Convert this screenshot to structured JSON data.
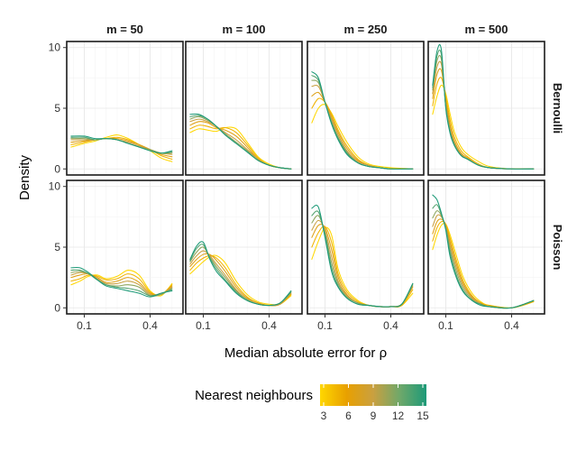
{
  "chart_data": {
    "type": "line",
    "xlabel": "Median absolute error for ρ",
    "ylabel": "Density",
    "xlim": [
      0.02,
      0.55
    ],
    "x_ticks": [
      {
        "value": 0.1,
        "label": "0.1"
      },
      {
        "value": 0.4,
        "label": "0.4"
      }
    ],
    "columns": [
      "m = 50",
      "m = 100",
      "m = 250",
      "m = 500"
    ],
    "rows": [
      {
        "label": "Bernoulli",
        "ylim": [
          -0.5,
          10.5
        ],
        "y_ticks": [
          {
            "value": 0,
            "label": "0"
          },
          {
            "value": 5,
            "label": "5"
          },
          {
            "value": 10,
            "label": "10"
          }
        ]
      },
      {
        "label": "Poisson",
        "ylim": [
          -0.5,
          10.5
        ],
        "y_ticks": [
          {
            "value": 0,
            "label": "0"
          },
          {
            "value": 5,
            "label": "5"
          },
          {
            "value": 10,
            "label": "10"
          }
        ]
      }
    ],
    "legend": {
      "title": "Nearest neighbours",
      "min": 3,
      "max": 15,
      "ticks": [
        "3",
        "6",
        "9",
        "12",
        "15"
      ],
      "colors": [
        "#FFD700",
        "#E8A000",
        "#C9A040",
        "#6FA86A",
        "#1D9A78"
      ]
    },
    "series_k": [
      3,
      5,
      7,
      9,
      11,
      13,
      15
    ],
    "panels": [
      {
        "row": "Bernoulli",
        "col": "m = 50",
        "x": [
          0.04,
          0.1,
          0.15,
          0.2,
          0.25,
          0.3,
          0.35,
          0.4,
          0.45,
          0.5
        ],
        "curves": [
          [
            1.8,
            2.1,
            2.3,
            2.6,
            2.8,
            2.5,
            2.0,
            1.5,
            0.9,
            0.6
          ],
          [
            2.0,
            2.2,
            2.4,
            2.5,
            2.6,
            2.4,
            2.0,
            1.6,
            1.1,
            0.8
          ],
          [
            2.2,
            2.3,
            2.4,
            2.5,
            2.5,
            2.3,
            2.0,
            1.6,
            1.2,
            1.0
          ],
          [
            2.4,
            2.4,
            2.4,
            2.5,
            2.4,
            2.2,
            1.9,
            1.6,
            1.3,
            1.2
          ],
          [
            2.5,
            2.5,
            2.4,
            2.5,
            2.4,
            2.1,
            1.8,
            1.6,
            1.3,
            1.3
          ],
          [
            2.6,
            2.6,
            2.4,
            2.5,
            2.4,
            2.1,
            1.8,
            1.5,
            1.3,
            1.4
          ],
          [
            2.7,
            2.7,
            2.5,
            2.5,
            2.4,
            2.1,
            1.8,
            1.5,
            1.3,
            1.5
          ]
        ]
      },
      {
        "row": "Bernoulli",
        "col": "m = 100",
        "x": [
          0.04,
          0.08,
          0.12,
          0.16,
          0.2,
          0.25,
          0.3,
          0.35,
          0.4,
          0.45,
          0.5
        ],
        "curves": [
          [
            3.0,
            3.3,
            3.2,
            3.1,
            3.4,
            3.3,
            2.2,
            1.0,
            0.4,
            0.1,
            0.0
          ],
          [
            3.3,
            3.6,
            3.5,
            3.3,
            3.4,
            3.0,
            2.0,
            0.9,
            0.3,
            0.1,
            0.0
          ],
          [
            3.6,
            3.9,
            3.8,
            3.4,
            3.2,
            2.7,
            1.8,
            0.8,
            0.3,
            0.1,
            0.0
          ],
          [
            3.9,
            4.1,
            3.9,
            3.5,
            3.0,
            2.4,
            1.6,
            0.8,
            0.3,
            0.1,
            0.0
          ],
          [
            4.1,
            4.3,
            4.0,
            3.5,
            2.9,
            2.2,
            1.5,
            0.7,
            0.3,
            0.1,
            0.0
          ],
          [
            4.3,
            4.4,
            4.1,
            3.5,
            2.8,
            2.1,
            1.4,
            0.7,
            0.3,
            0.1,
            0.0
          ],
          [
            4.5,
            4.5,
            4.1,
            3.5,
            2.8,
            2.1,
            1.4,
            0.7,
            0.3,
            0.1,
            0.0
          ]
        ]
      },
      {
        "row": "Bernoulli",
        "col": "m = 250",
        "x": [
          0.04,
          0.07,
          0.1,
          0.13,
          0.16,
          0.2,
          0.25,
          0.3,
          0.35,
          0.4,
          0.5
        ],
        "curves": [
          [
            3.8,
            5.0,
            5.3,
            4.6,
            3.5,
            2.2,
            1.0,
            0.4,
            0.2,
            0.1,
            0.0
          ],
          [
            5.0,
            5.8,
            5.5,
            4.5,
            3.2,
            1.9,
            0.8,
            0.3,
            0.1,
            0.0,
            0.0
          ],
          [
            6.0,
            6.3,
            5.5,
            4.3,
            3.0,
            1.7,
            0.7,
            0.3,
            0.1,
            0.0,
            0.0
          ],
          [
            6.8,
            6.8,
            5.5,
            4.1,
            2.8,
            1.5,
            0.6,
            0.3,
            0.1,
            0.0,
            0.0
          ],
          [
            7.3,
            7.1,
            5.5,
            3.9,
            2.6,
            1.4,
            0.5,
            0.2,
            0.1,
            0.0,
            0.0
          ],
          [
            7.7,
            7.3,
            5.5,
            3.8,
            2.5,
            1.3,
            0.5,
            0.2,
            0.1,
            0.0,
            0.0
          ],
          [
            8.0,
            7.5,
            5.5,
            3.7,
            2.4,
            1.2,
            0.5,
            0.2,
            0.1,
            0.0,
            0.0
          ]
        ]
      },
      {
        "row": "Bernoulli",
        "col": "m = 500",
        "x": [
          0.04,
          0.06,
          0.08,
          0.1,
          0.12,
          0.14,
          0.17,
          0.2,
          0.25,
          0.3,
          0.4,
          0.5
        ],
        "curves": [
          [
            4.5,
            6.0,
            6.9,
            6.2,
            4.5,
            3.0,
            1.8,
            1.2,
            0.6,
            0.2,
            0.0,
            0.0
          ],
          [
            5.2,
            7.0,
            7.5,
            6.0,
            4.0,
            2.6,
            1.5,
            1.0,
            0.4,
            0.1,
            0.0,
            0.0
          ],
          [
            5.8,
            7.8,
            8.1,
            5.7,
            3.6,
            2.3,
            1.3,
            0.9,
            0.3,
            0.1,
            0.0,
            0.0
          ],
          [
            6.2,
            8.4,
            8.6,
            5.4,
            3.3,
            2.1,
            1.2,
            0.8,
            0.3,
            0.1,
            0.0,
            0.0
          ],
          [
            6.5,
            8.9,
            9.0,
            5.2,
            3.1,
            2.0,
            1.1,
            0.8,
            0.3,
            0.1,
            0.0,
            0.0
          ],
          [
            6.7,
            9.3,
            9.4,
            5.1,
            3.0,
            1.9,
            1.1,
            0.8,
            0.3,
            0.1,
            0.0,
            0.0
          ],
          [
            6.9,
            9.7,
            9.8,
            5.0,
            2.9,
            1.9,
            1.1,
            0.8,
            0.3,
            0.1,
            0.0,
            0.0
          ]
        ]
      },
      {
        "row": "Poisson",
        "col": "m = 50",
        "x": [
          0.04,
          0.08,
          0.12,
          0.16,
          0.2,
          0.25,
          0.3,
          0.35,
          0.4,
          0.45,
          0.5
        ],
        "curves": [
          [
            1.9,
            2.2,
            2.6,
            2.7,
            2.4,
            2.6,
            3.1,
            2.7,
            1.4,
            1.0,
            2.0
          ],
          [
            2.2,
            2.4,
            2.7,
            2.6,
            2.3,
            2.4,
            2.8,
            2.4,
            1.3,
            1.1,
            1.9
          ],
          [
            2.5,
            2.7,
            2.8,
            2.5,
            2.1,
            2.2,
            2.5,
            2.1,
            1.2,
            1.1,
            1.8
          ],
          [
            2.7,
            2.9,
            2.8,
            2.4,
            2.0,
            2.0,
            2.2,
            1.9,
            1.1,
            1.1,
            1.7
          ],
          [
            2.9,
            3.0,
            2.8,
            2.3,
            1.9,
            1.8,
            1.9,
            1.7,
            1.0,
            1.1,
            1.6
          ],
          [
            3.1,
            3.1,
            2.8,
            2.3,
            1.9,
            1.7,
            1.6,
            1.4,
            1.0,
            1.2,
            1.5
          ],
          [
            3.3,
            3.3,
            2.9,
            2.3,
            1.8,
            1.6,
            1.4,
            1.2,
            0.9,
            1.2,
            1.4
          ]
        ]
      },
      {
        "row": "Poisson",
        "col": "m = 100",
        "x": [
          0.04,
          0.07,
          0.1,
          0.13,
          0.16,
          0.2,
          0.25,
          0.3,
          0.35,
          0.4,
          0.45,
          0.5
        ],
        "curves": [
          [
            2.8,
            3.3,
            3.8,
            4.2,
            4.3,
            3.7,
            2.2,
            1.1,
            0.5,
            0.3,
            0.3,
            1.0
          ],
          [
            3.1,
            3.7,
            4.1,
            4.3,
            4.1,
            3.3,
            1.9,
            0.9,
            0.4,
            0.2,
            0.3,
            1.1
          ],
          [
            3.4,
            4.0,
            4.4,
            4.4,
            3.9,
            3.0,
            1.7,
            0.8,
            0.4,
            0.2,
            0.3,
            1.2
          ],
          [
            3.6,
            4.3,
            4.7,
            4.3,
            3.6,
            2.7,
            1.5,
            0.7,
            0.3,
            0.2,
            0.3,
            1.2
          ],
          [
            3.8,
            4.6,
            5.0,
            4.2,
            3.4,
            2.5,
            1.4,
            0.7,
            0.3,
            0.2,
            0.4,
            1.3
          ],
          [
            3.9,
            4.9,
            5.2,
            4.1,
            3.2,
            2.3,
            1.3,
            0.6,
            0.3,
            0.2,
            0.4,
            1.3
          ],
          [
            4.0,
            5.1,
            5.4,
            4.0,
            3.0,
            2.2,
            1.2,
            0.6,
            0.3,
            0.2,
            0.4,
            1.4
          ]
        ]
      },
      {
        "row": "Poisson",
        "col": "m = 250",
        "x": [
          0.04,
          0.07,
          0.1,
          0.13,
          0.16,
          0.2,
          0.25,
          0.3,
          0.35,
          0.4,
          0.45,
          0.5
        ],
        "curves": [
          [
            4.0,
            5.5,
            6.6,
            6.0,
            3.2,
            1.5,
            0.6,
            0.2,
            0.1,
            0.1,
            0.2,
            1.2
          ],
          [
            5.0,
            6.2,
            6.7,
            5.4,
            2.8,
            1.3,
            0.5,
            0.2,
            0.1,
            0.1,
            0.2,
            1.5
          ],
          [
            5.8,
            6.8,
            6.6,
            4.8,
            2.5,
            1.1,
            0.4,
            0.2,
            0.1,
            0.1,
            0.3,
            1.7
          ],
          [
            6.4,
            7.2,
            6.4,
            4.2,
            2.2,
            1.0,
            0.4,
            0.2,
            0.1,
            0.1,
            0.3,
            1.8
          ],
          [
            7.0,
            7.6,
            6.2,
            3.7,
            2.0,
            0.9,
            0.4,
            0.2,
            0.1,
            0.1,
            0.3,
            1.9
          ],
          [
            7.6,
            7.9,
            6.0,
            3.3,
            1.8,
            0.8,
            0.3,
            0.2,
            0.1,
            0.1,
            0.3,
            2.0
          ],
          [
            8.2,
            8.3,
            5.8,
            3.0,
            1.7,
            0.8,
            0.3,
            0.2,
            0.1,
            0.1,
            0.3,
            2.0
          ]
        ]
      },
      {
        "row": "Poisson",
        "col": "m = 500",
        "x": [
          0.04,
          0.06,
          0.08,
          0.1,
          0.12,
          0.15,
          0.18,
          0.22,
          0.26,
          0.3,
          0.4,
          0.5
        ],
        "curves": [
          [
            4.8,
            6.0,
            6.8,
            6.9,
            6.0,
            4.2,
            2.5,
            1.2,
            0.5,
            0.2,
            0.0,
            0.5
          ],
          [
            5.5,
            6.6,
            7.1,
            6.9,
            5.7,
            3.8,
            2.2,
            1.0,
            0.4,
            0.2,
            0.0,
            0.5
          ],
          [
            6.1,
            7.1,
            7.3,
            6.8,
            5.4,
            3.5,
            2.0,
            0.9,
            0.4,
            0.1,
            0.0,
            0.6
          ],
          [
            6.7,
            7.6,
            7.5,
            6.7,
            5.1,
            3.2,
            1.8,
            0.8,
            0.3,
            0.1,
            0.0,
            0.6
          ],
          [
            7.4,
            8.0,
            7.6,
            6.6,
            4.8,
            2.9,
            1.6,
            0.7,
            0.3,
            0.1,
            0.0,
            0.6
          ],
          [
            8.2,
            8.5,
            7.7,
            6.5,
            4.5,
            2.6,
            1.4,
            0.6,
            0.3,
            0.1,
            0.0,
            0.6
          ],
          [
            9.3,
            8.9,
            7.8,
            6.4,
            4.2,
            2.4,
            1.3,
            0.6,
            0.2,
            0.1,
            0.0,
            0.6
          ]
        ]
      }
    ]
  }
}
